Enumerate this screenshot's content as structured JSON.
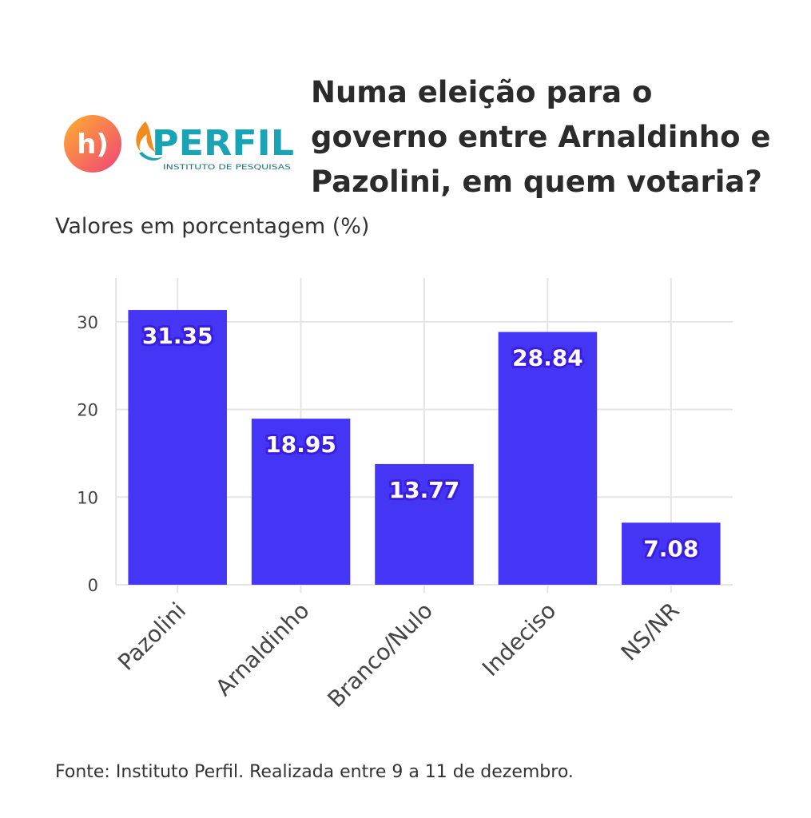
{
  "header": {
    "title": "Numa eleição para o\ngoverno entre Arnaldinho e\nPazolini, em quem votaria?",
    "subtitle": "Valores em porcentagem (%)"
  },
  "logos": {
    "left_logo_text": "h)",
    "right_logo_text": "PERFIL",
    "right_logo_tagline": "INSTITUTO DE PESQUISAS"
  },
  "footer": {
    "caption": "Fonte: Instituto Perfil. Realizada entre 9 a 11 de dezembro."
  },
  "colors": {
    "bar": "#4535f5",
    "bar_label_outline": "#3a1fe0",
    "grid": "#e5e5e5",
    "tick": "#444444",
    "logo_gradient_start": "#ffb02e",
    "logo_gradient_end": "#f0427a",
    "perfil_teal": "#1aa3b4",
    "perfil_orange": "#f28a1e"
  },
  "chart_data": {
    "type": "bar",
    "categories": [
      "Pazolini",
      "Arnaldinho",
      "Branco/Nulo",
      "Indeciso",
      "NS/NR"
    ],
    "values": [
      31.35,
      18.95,
      13.77,
      28.84,
      7.08
    ],
    "value_labels": [
      "31.35",
      "18.95",
      "13.77",
      "28.84",
      "7.08"
    ],
    "title": "Numa eleição para o governo entre Arnaldinho e Pazolini, em quem votaria?",
    "xlabel": "",
    "ylabel": "",
    "ylim": [
      0,
      35
    ],
    "yticks": [
      0,
      10,
      20,
      30
    ],
    "grid": true,
    "legend": "none"
  }
}
